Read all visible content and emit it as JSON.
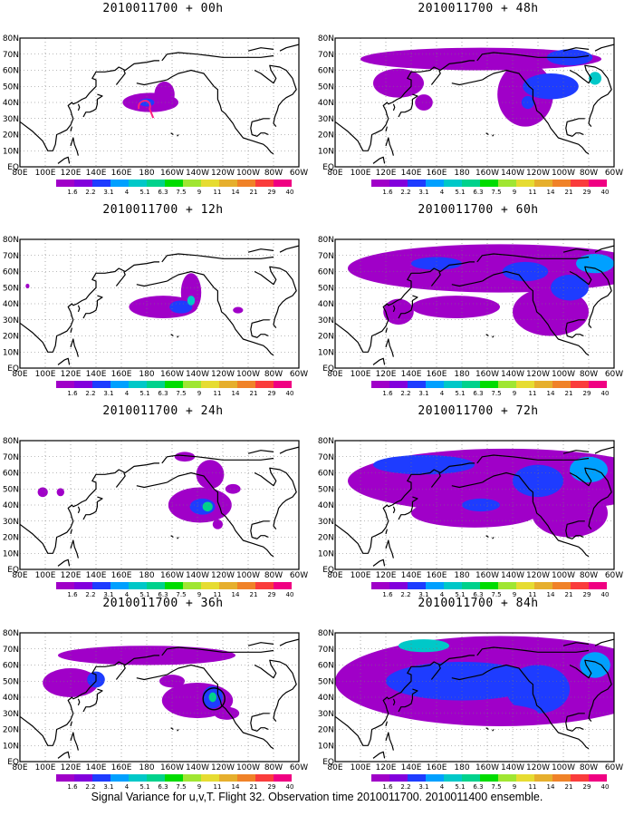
{
  "panels": [
    {
      "title": "2010011700 + 00h",
      "blobs": [
        {
          "lon": 183,
          "lat": 40,
          "rx": 22,
          "ry": 6,
          "level": 0
        },
        {
          "lon": 194,
          "lat": 45,
          "rx": 8,
          "ry": 8,
          "level": 0
        },
        {
          "lon": 180,
          "lat": 40,
          "rx": 6,
          "ry": 2.5,
          "level": 2
        }
      ],
      "markers": [
        {
          "type": "track",
          "lon": 178,
          "lat": 36,
          "color": "#ff2080"
        }
      ]
    },
    {
      "title": "2010011700 + 12h",
      "blobs": [
        {
          "lon": 193,
          "lat": 38,
          "rx": 27,
          "ry": 7,
          "level": 0
        },
        {
          "lon": 215,
          "lat": 47,
          "rx": 8,
          "ry": 12,
          "level": 0
        },
        {
          "lon": 207,
          "lat": 38,
          "rx": 9,
          "ry": 4,
          "level": 2
        },
        {
          "lon": 215,
          "lat": 42,
          "rx": 3,
          "ry": 3,
          "level": 4
        },
        {
          "lon": 252,
          "lat": 36,
          "rx": 4,
          "ry": 2,
          "level": 0
        },
        {
          "lon": 86,
          "lat": 51,
          "rx": 1.5,
          "ry": 1.5,
          "level": 0
        }
      ],
      "markers": []
    },
    {
      "title": "2010011700 + 24h",
      "blobs": [
        {
          "lon": 222,
          "lat": 40,
          "rx": 25,
          "ry": 11,
          "level": 0
        },
        {
          "lon": 230,
          "lat": 59,
          "rx": 11,
          "ry": 9,
          "level": 0
        },
        {
          "lon": 210,
          "lat": 70,
          "rx": 8,
          "ry": 3,
          "level": 0
        },
        {
          "lon": 224,
          "lat": 39,
          "rx": 10,
          "ry": 5,
          "level": 2
        },
        {
          "lon": 228,
          "lat": 39,
          "rx": 4,
          "ry": 3,
          "level": 5
        },
        {
          "lon": 98,
          "lat": 48,
          "rx": 4,
          "ry": 3,
          "level": 0
        },
        {
          "lon": 112,
          "lat": 48,
          "rx": 3,
          "ry": 2.5,
          "level": 0
        },
        {
          "lon": 248,
          "lat": 50,
          "rx": 6,
          "ry": 3,
          "level": 0
        },
        {
          "lon": 236,
          "lat": 28,
          "rx": 4,
          "ry": 3,
          "level": 0
        }
      ],
      "markers": []
    },
    {
      "title": "2010011700 + 36h",
      "blobs": [
        {
          "lon": 220,
          "lat": 38,
          "rx": 28,
          "ry": 11,
          "level": 0
        },
        {
          "lon": 180,
          "lat": 66,
          "rx": 70,
          "ry": 6,
          "level": 0
        },
        {
          "lon": 120,
          "lat": 49,
          "rx": 22,
          "ry": 9,
          "level": 0
        },
        {
          "lon": 140,
          "lat": 51,
          "rx": 7,
          "ry": 5,
          "level": 2
        },
        {
          "lon": 232,
          "lat": 40,
          "rx": 8,
          "ry": 7,
          "level": 2
        },
        {
          "lon": 232,
          "lat": 40,
          "rx": 3,
          "ry": 3,
          "level": 5
        },
        {
          "lon": 243,
          "lat": 30,
          "rx": 10,
          "ry": 4,
          "level": 0
        },
        {
          "lon": 200,
          "lat": 50,
          "rx": 10,
          "ry": 4,
          "level": 0
        }
      ],
      "markers": [
        {
          "type": "circle",
          "lon": 233,
          "lat": 39,
          "color": "#000000"
        }
      ]
    },
    {
      "title": "2010011700 + 48h",
      "blobs": [
        {
          "lon": 195,
          "lat": 67,
          "rx": 95,
          "ry": 7,
          "level": 0
        },
        {
          "lon": 230,
          "lat": 45,
          "rx": 22,
          "ry": 20,
          "level": 0
        },
        {
          "lon": 130,
          "lat": 52,
          "rx": 20,
          "ry": 9,
          "level": 0
        },
        {
          "lon": 250,
          "lat": 50,
          "rx": 22,
          "ry": 8,
          "level": 2
        },
        {
          "lon": 265,
          "lat": 68,
          "rx": 18,
          "ry": 5,
          "level": 2
        },
        {
          "lon": 232,
          "lat": 40,
          "rx": 5,
          "ry": 4,
          "level": 2
        },
        {
          "lon": 150,
          "lat": 40,
          "rx": 7,
          "ry": 5,
          "level": 0
        },
        {
          "lon": 285,
          "lat": 55,
          "rx": 5,
          "ry": 4,
          "level": 4
        }
      ],
      "markers": []
    },
    {
      "title": "2010011700 + 60h",
      "blobs": [
        {
          "lon": 210,
          "lat": 62,
          "rx": 120,
          "ry": 15,
          "level": 0
        },
        {
          "lon": 175,
          "lat": 38,
          "rx": 35,
          "ry": 7,
          "level": 0
        },
        {
          "lon": 250,
          "lat": 35,
          "rx": 30,
          "ry": 15,
          "level": 0
        },
        {
          "lon": 130,
          "lat": 35,
          "rx": 12,
          "ry": 8,
          "level": 0
        },
        {
          "lon": 230,
          "lat": 60,
          "rx": 18,
          "ry": 6,
          "level": 2
        },
        {
          "lon": 160,
          "lat": 65,
          "rx": 20,
          "ry": 4,
          "level": 2
        },
        {
          "lon": 265,
          "lat": 50,
          "rx": 15,
          "ry": 8,
          "level": 2
        },
        {
          "lon": 285,
          "lat": 65,
          "rx": 15,
          "ry": 6,
          "level": 3
        }
      ],
      "markers": []
    },
    {
      "title": "2010011700 + 72h",
      "blobs": [
        {
          "lon": 215,
          "lat": 55,
          "rx": 125,
          "ry": 20,
          "level": 0
        },
        {
          "lon": 190,
          "lat": 35,
          "rx": 50,
          "ry": 9,
          "level": 0
        },
        {
          "lon": 265,
          "lat": 35,
          "rx": 30,
          "ry": 15,
          "level": 0
        },
        {
          "lon": 150,
          "lat": 65,
          "rx": 40,
          "ry": 6,
          "level": 2
        },
        {
          "lon": 240,
          "lat": 55,
          "rx": 20,
          "ry": 10,
          "level": 2
        },
        {
          "lon": 280,
          "lat": 62,
          "rx": 15,
          "ry": 8,
          "level": 3
        },
        {
          "lon": 195,
          "lat": 40,
          "rx": 15,
          "ry": 4,
          "level": 2
        }
      ],
      "markers": []
    },
    {
      "title": "2010011700 + 84h",
      "blobs": [
        {
          "lon": 210,
          "lat": 50,
          "rx": 130,
          "ry": 28,
          "level": 0
        },
        {
          "lon": 180,
          "lat": 50,
          "rx": 60,
          "ry": 12,
          "level": 2
        },
        {
          "lon": 240,
          "lat": 45,
          "rx": 25,
          "ry": 15,
          "level": 2
        },
        {
          "lon": 150,
          "lat": 72,
          "rx": 20,
          "ry": 4,
          "level": 4
        },
        {
          "lon": 285,
          "lat": 60,
          "rx": 12,
          "ry": 8,
          "level": 3
        },
        {
          "lon": 200,
          "lat": 30,
          "rx": 40,
          "ry": 6,
          "level": 0
        }
      ],
      "markers": []
    }
  ],
  "axes": {
    "lat_labels": [
      "EQ",
      "10N",
      "20N",
      "30N",
      "40N",
      "50N",
      "60N",
      "70N",
      "80N"
    ],
    "lat_values": [
      0,
      10,
      20,
      30,
      40,
      50,
      60,
      70,
      80
    ],
    "lon_labels": [
      "80E",
      "100E",
      "120E",
      "140E",
      "160E",
      "180",
      "160W",
      "140W",
      "120W",
      "100W",
      "80W",
      "60W"
    ],
    "lon_values": [
      80,
      100,
      120,
      140,
      160,
      180,
      200,
      220,
      240,
      260,
      280,
      300
    ],
    "lon_range": [
      80,
      300
    ],
    "lat_range": [
      0,
      80
    ]
  },
  "colorbar": {
    "labels": [
      "1.6",
      "2.2",
      "3.1",
      "4",
      "5.1",
      "6.3",
      "7.5",
      "9",
      "11",
      "14",
      "21",
      "29",
      "40"
    ],
    "colors": [
      "#a000c8",
      "#8200dc",
      "#1e3cff",
      "#00a0ff",
      "#00c8c8",
      "#00d28c",
      "#00dc00",
      "#a0e632",
      "#e6dc32",
      "#e6af2d",
      "#f08228",
      "#fa3c3c",
      "#f00082"
    ]
  },
  "caption": "Signal Variance for u,v,T. Flight 32. Observation time 2010011700. 2010011400 ensemble."
}
